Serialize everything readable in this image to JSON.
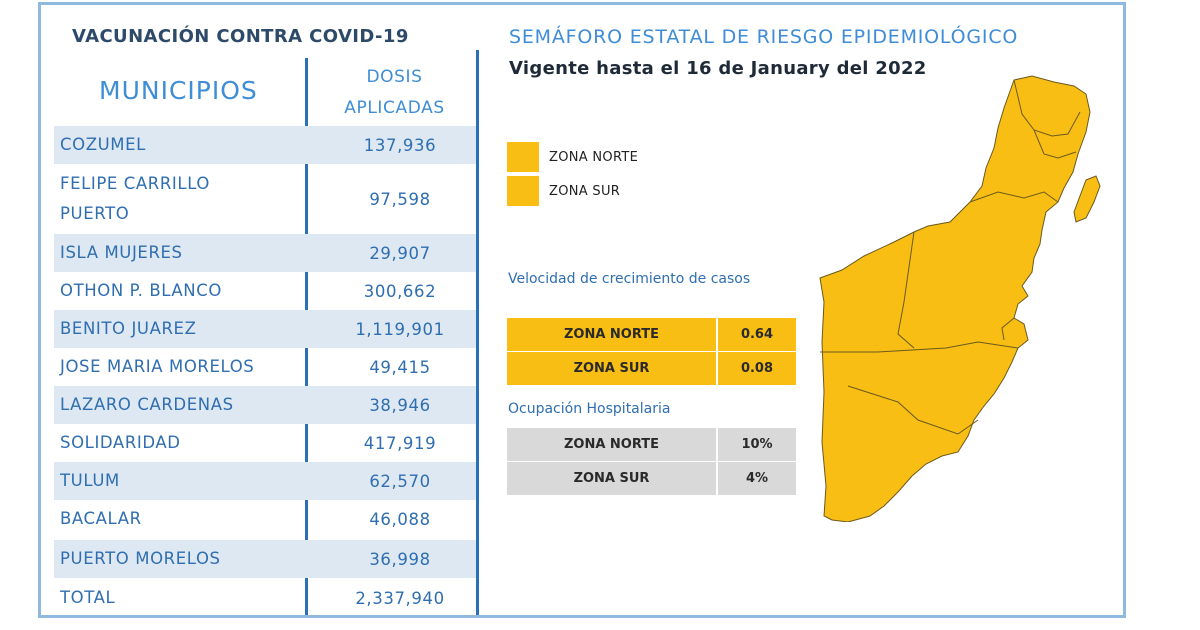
{
  "vacunacion": {
    "title": "VACUNACIÓN CONTRA COVID-19",
    "header_municipios": "MUNICIPIOS",
    "header_dosis_line1": "DOSIS",
    "header_dosis_line2": "APLICADAS",
    "rows": [
      {
        "name": "COZUMEL",
        "value": "137,936"
      },
      {
        "name": "FELIPE CARRILLO PUERTO",
        "name_line1": "FELIPE CARRILLO",
        "name_line2": "PUERTO",
        "value": "97,598"
      },
      {
        "name": "ISLA MUJERES",
        "value": "29,907"
      },
      {
        "name": "OTHON P. BLANCO",
        "value": "300,662"
      },
      {
        "name": "BENITO JUAREZ",
        "value": "1,119,901"
      },
      {
        "name": "JOSE MARIA MORELOS",
        "value": "49,415"
      },
      {
        "name": "LAZARO CARDENAS",
        "value": "38,946"
      },
      {
        "name": "SOLIDARIDAD",
        "value": "417,919"
      },
      {
        "name": "TULUM",
        "value": "62,570"
      },
      {
        "name": "BACALAR",
        "value": "46,088"
      },
      {
        "name": "PUERTO MORELOS",
        "value": "36,998"
      },
      {
        "name": "TOTAL",
        "value": "2,337,940"
      }
    ]
  },
  "semaforo": {
    "title": "SEMÁFORO ESTATAL DE RIESGO EPIDEMIOLÓGICO",
    "vigente": "Vigente hasta el 16 de January del 2022",
    "legend": [
      {
        "label": "ZONA NORTE",
        "color": "#f8be14"
      },
      {
        "label": "ZONA SUR",
        "color": "#f8be14"
      }
    ],
    "velocidad": {
      "title": "Velocidad de crecimiento de casos",
      "rows": [
        {
          "zona": "ZONA NORTE",
          "value": "0.64"
        },
        {
          "zona": "ZONA SUR",
          "value": "0.08"
        }
      ]
    },
    "ocupacion": {
      "title": "Ocupación Hospitalaria",
      "rows": [
        {
          "zona": "ZONA NORTE",
          "value": "10%"
        },
        {
          "zona": "ZONA SUR",
          "value": "4%"
        }
      ]
    },
    "map_color": "#f8be14",
    "map_border_color": "#6b5a1e"
  }
}
